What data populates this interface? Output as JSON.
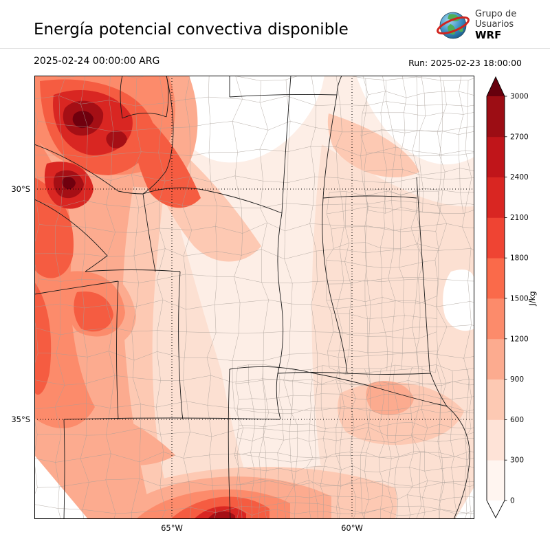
{
  "header": {
    "title": "Energía potencial convectiva disponible",
    "logo": {
      "line1": "Grupo de",
      "line2": "Usuarios",
      "line3": "WRF"
    }
  },
  "subheader": {
    "valid_time": "2025-02-24 00:00:00 ARG",
    "run_label": "Run: 2025-02-23 18:00:00"
  },
  "map": {
    "lat_labels": [
      "30°S",
      "35°S"
    ],
    "lon_labels": [
      "65°W",
      "60°W"
    ]
  },
  "colorbar": {
    "unit": "J/kg",
    "ticks_bottom_to_top": [
      "0",
      "300",
      "600",
      "900",
      "1200",
      "1500",
      "1800",
      "2100",
      "2400",
      "2700",
      "3000"
    ],
    "segment_colors_bottom_to_top": [
      "#fff5f0",
      "#fee3d7",
      "#fdc9b3",
      "#fcab8f",
      "#fc8b6b",
      "#fa6a4a",
      "#ef4433",
      "#d92622",
      "#c0151a",
      "#9c0d14"
    ],
    "over_color": "#67000d",
    "under_color": "#ffffff"
  },
  "map_palette": {
    "base": "#fdeee6",
    "white": "#ffffff",
    "l2": "#fce0d2",
    "l3": "#fdc9b3",
    "l4": "#fcab8f",
    "l5": "#fc8b6b",
    "l6": "#f55c41",
    "l7": "#d92622",
    "l8": "#a50f15",
    "l9": "#70000e",
    "province_line": "#1a1a1a",
    "department_line": "#a89f98",
    "grid_line": "#000000"
  }
}
